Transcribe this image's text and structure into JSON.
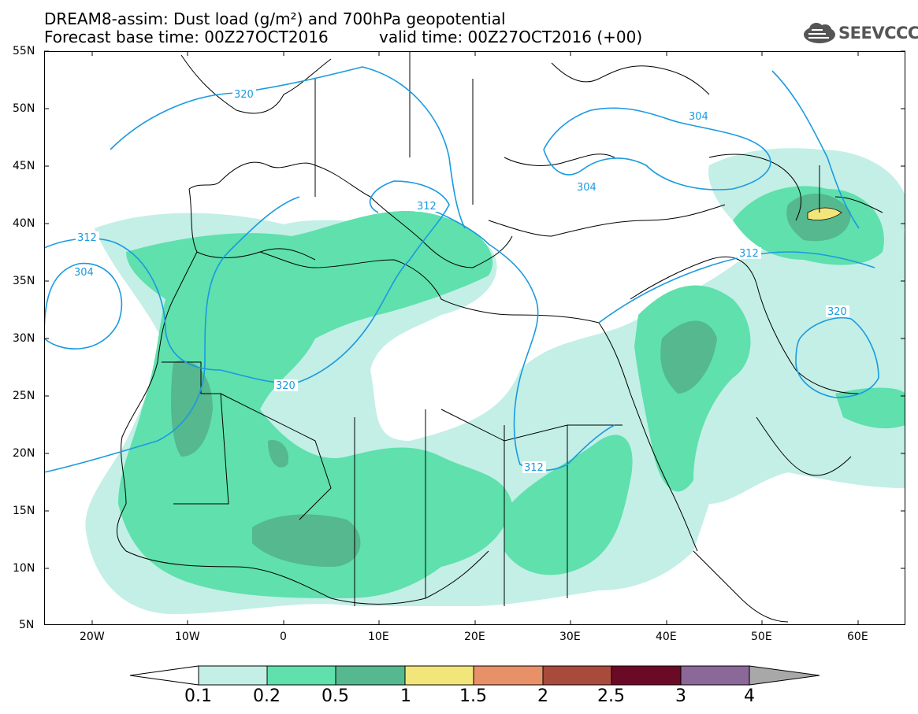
{
  "header": {
    "title_line1": "DREAM8-assim: Dust load (g/m²) and 700hPa geopotential",
    "title_line2_left": "Forecast base time: 00Z27OCT2016",
    "title_line2_right": "valid time: 00Z27OCT2016 (+00)"
  },
  "logo": {
    "text": "SEEVCCC",
    "icon": "cloud-icon"
  },
  "axes": {
    "lat_labels": [
      "55N",
      "50N",
      "45N",
      "40N",
      "35N",
      "30N",
      "25N",
      "20N",
      "15N",
      "10N",
      "5N"
    ],
    "lon_labels": [
      "20W",
      "10W",
      "0",
      "10E",
      "20E",
      "30E",
      "40E",
      "50E",
      "60E"
    ]
  },
  "contours": {
    "labels": [
      "320",
      "304",
      "312",
      "304",
      "312",
      "312",
      "304",
      "320",
      "312",
      "320"
    ]
  },
  "colorbar": {
    "ticks": [
      "0.1",
      "0.2",
      "0.5",
      "1",
      "1.5",
      "2",
      "2.5",
      "3",
      "4"
    ],
    "colors": [
      "#ffffff",
      "#c3efe6",
      "#5fe0ad",
      "#55b88e",
      "#f2e67a",
      "#e89068",
      "#a84a3c",
      "#6b0a26",
      "#8a6898",
      "#a8a8a8"
    ]
  },
  "colors": {
    "coast": "#000000",
    "contour": "#1a9ae0",
    "dust_light": "#c3efe6",
    "dust_mid": "#5fe0ad",
    "dust_dark": "#55b88e",
    "dust_yellow": "#f2e67a"
  }
}
